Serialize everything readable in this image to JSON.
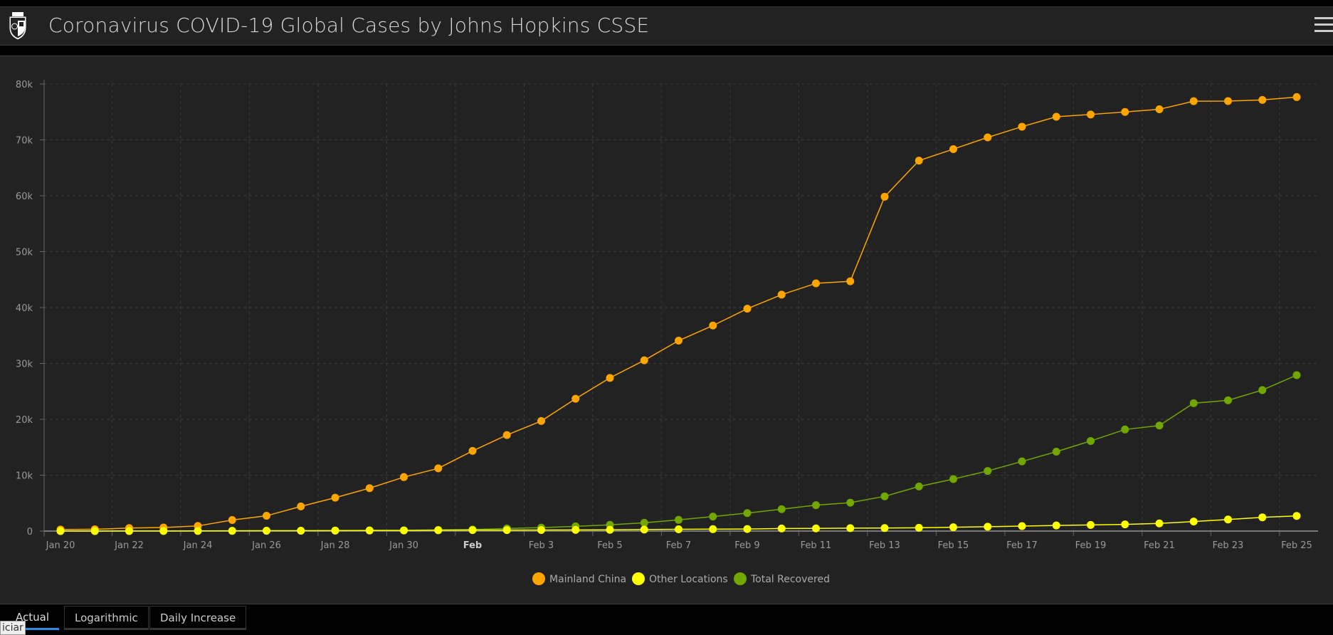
{
  "header": {
    "title": "Coronavirus COVID-19 Global Cases by Johns Hopkins CSSE",
    "logo_icon": "jhu-shield-logo",
    "menu_icon": "hamburger-menu-icon"
  },
  "tabs": [
    {
      "label": "Actual",
      "active": true
    },
    {
      "label": "Logarithmic",
      "active": false
    },
    {
      "label": "Daily Increase",
      "active": false
    }
  ],
  "tooltip_fragment": "iciar",
  "chart_data": {
    "type": "line",
    "title": "",
    "xlabel": "",
    "ylabel": "",
    "x": [
      "Jan 20",
      "Jan 21",
      "Jan 22",
      "Jan 23",
      "Jan 24",
      "Jan 25",
      "Jan 26",
      "Jan 27",
      "Jan 28",
      "Jan 29",
      "Jan 30",
      "Jan 31",
      "Feb 1",
      "Feb 2",
      "Feb 3",
      "Feb 4",
      "Feb 5",
      "Feb 6",
      "Feb 7",
      "Feb 8",
      "Feb 9",
      "Feb 10",
      "Feb 11",
      "Feb 12",
      "Feb 13",
      "Feb 14",
      "Feb 15",
      "Feb 16",
      "Feb 17",
      "Feb 18",
      "Feb 19",
      "Feb 20",
      "Feb 21",
      "Feb 22",
      "Feb 23",
      "Feb 24",
      "Feb 25"
    ],
    "x_tick_labels": [
      "Jan 20",
      "Jan 22",
      "Jan 24",
      "Jan 26",
      "Jan 28",
      "Jan 30",
      "Feb",
      "Feb 3",
      "Feb 5",
      "Feb 7",
      "Feb 9",
      "Feb 11",
      "Feb 13",
      "Feb 15",
      "Feb 17",
      "Feb 19",
      "Feb 21",
      "Feb 23",
      "Feb 25"
    ],
    "y_tick_labels": [
      "0",
      "10k",
      "20k",
      "30k",
      "40k",
      "50k",
      "60k",
      "70k",
      "80k"
    ],
    "ylim": [
      0,
      80000
    ],
    "grid": true,
    "legend_position": "bottom-center",
    "series": [
      {
        "name": "Mainland China",
        "color": "#ffa500",
        "values": [
          278,
          326,
          547,
          639,
          916,
          1979,
          2737,
          4409,
          5970,
          7678,
          9658,
          11221,
          14341,
          17187,
          19693,
          23680,
          27409,
          30553,
          34075,
          36778,
          39790,
          42306,
          44327,
          44699,
          59832,
          66292,
          68347,
          70446,
          72364,
          74139,
          74546,
          74999,
          75472,
          76922,
          76938,
          77152,
          77660
        ]
      },
      {
        "name": "Other Locations",
        "color": "#ffff00",
        "values": [
          4,
          6,
          8,
          16,
          25,
          40,
          57,
          64,
          87,
          105,
          118,
          153,
          173,
          183,
          188,
          212,
          227,
          265,
          317,
          343,
          361,
          457,
          476,
          523,
          538,
          595,
          685,
          780,
          896,
          999,
          1095,
          1200,
          1371,
          1699,
          2069,
          2459,
          2714
        ]
      },
      {
        "name": "Total Recovered",
        "color": "#70a800",
        "values": [
          0,
          0,
          28,
          30,
          36,
          39,
          49,
          58,
          101,
          120,
          135,
          214,
          275,
          463,
          614,
          843,
          1115,
          1477,
          1999,
          2596,
          3219,
          3918,
          4636,
          5082,
          6217,
          7977,
          9298,
          10755,
          12462,
          14206,
          16121,
          18177,
          18890,
          22886,
          23394,
          25227,
          27905
        ]
      }
    ]
  }
}
